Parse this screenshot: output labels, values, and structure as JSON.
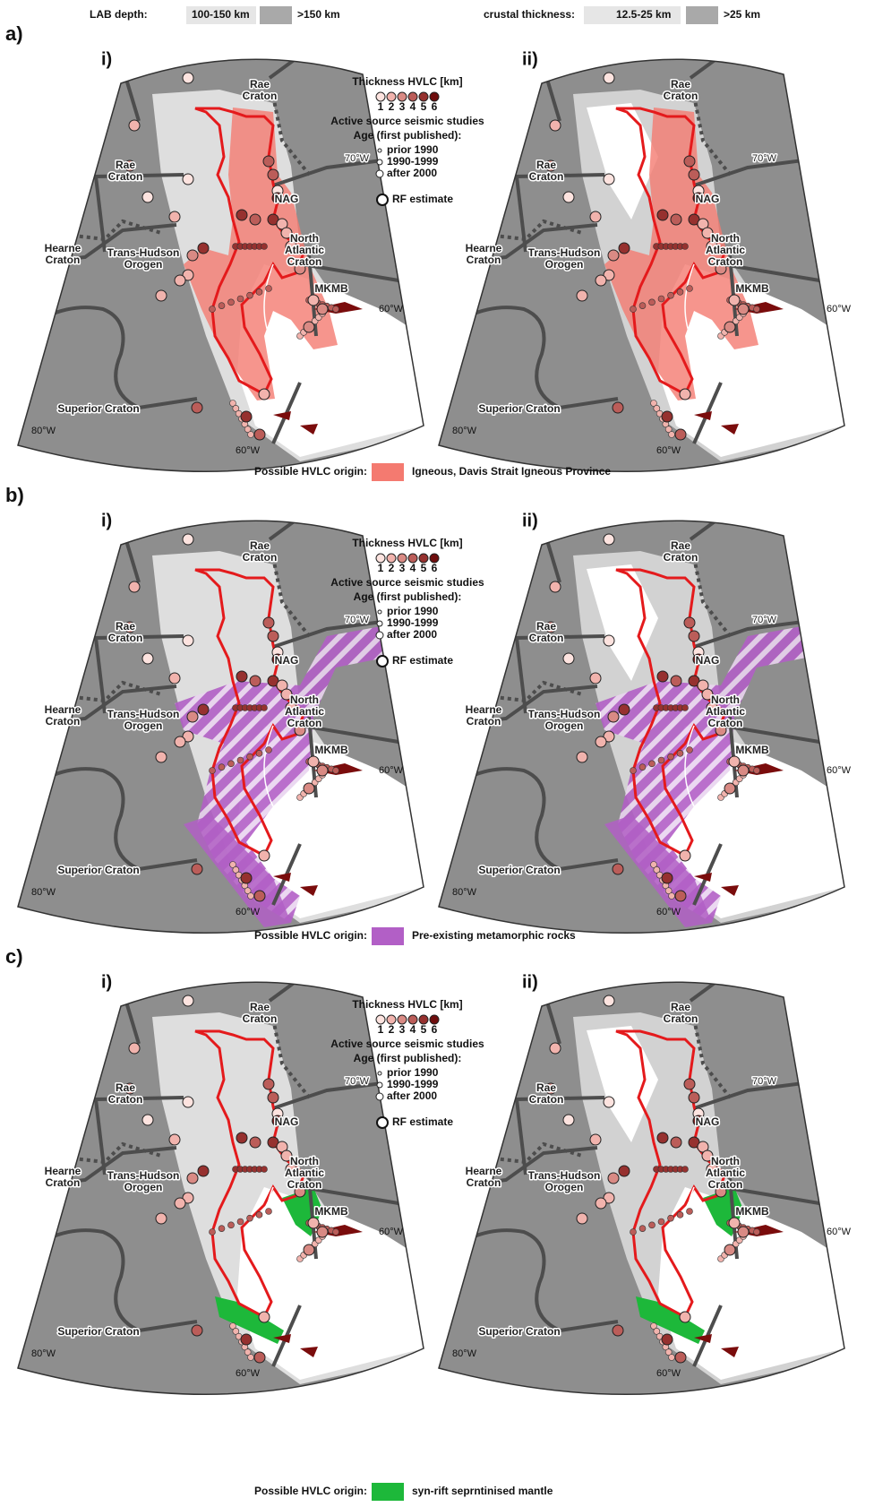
{
  "legend_top": {
    "lab": {
      "label": "LAB depth:",
      "items": [
        "100-150 km",
        ">150 km"
      ]
    },
    "crust": {
      "label": "crustal thickness:",
      "items": [
        "12.5-25 km",
        ">25 km"
      ]
    }
  },
  "key": {
    "title": "Thickness HVLC [km]",
    "scale": [
      1,
      2,
      3,
      4,
      5,
      6
    ],
    "active": "Active source seismic studies",
    "age_title": "Age (first published):",
    "ages": [
      "prior 1990",
      "1990-1999",
      "after 2000"
    ],
    "rf": "RF estimate"
  },
  "panels": [
    "i)",
    "ii)"
  ],
  "map_labels": [
    {
      "lines": [
        "Rae",
        "Craton"
      ]
    },
    {
      "lines": [
        "Rae",
        "Craton"
      ]
    },
    {
      "lines": [
        "NAG"
      ]
    },
    {
      "lines": [
        "North",
        "Atlantic",
        "Craton"
      ]
    },
    {
      "lines": [
        "Hearne",
        "Craton"
      ]
    },
    {
      "lines": [
        "Trans-Hudson",
        "Orogen"
      ]
    },
    {
      "lines": [
        "MKMB"
      ]
    },
    {
      "lines": [
        "Superior Craton"
      ]
    }
  ],
  "longitudes": [
    "70°W",
    "60°W",
    "80°W"
  ],
  "origin_label": "Possible HVLC origin:",
  "rows": [
    {
      "label": "a)",
      "origin": "Igneous, Davis Strait Igneous Province",
      "color": "#f47a70"
    },
    {
      "label": "b)",
      "origin": "Pre-existing metamorphic rocks",
      "color": "#b25fc6"
    },
    {
      "label": "c)",
      "origin": "syn-rift seprntinised mantle",
      "color": "#1db83a"
    }
  ]
}
